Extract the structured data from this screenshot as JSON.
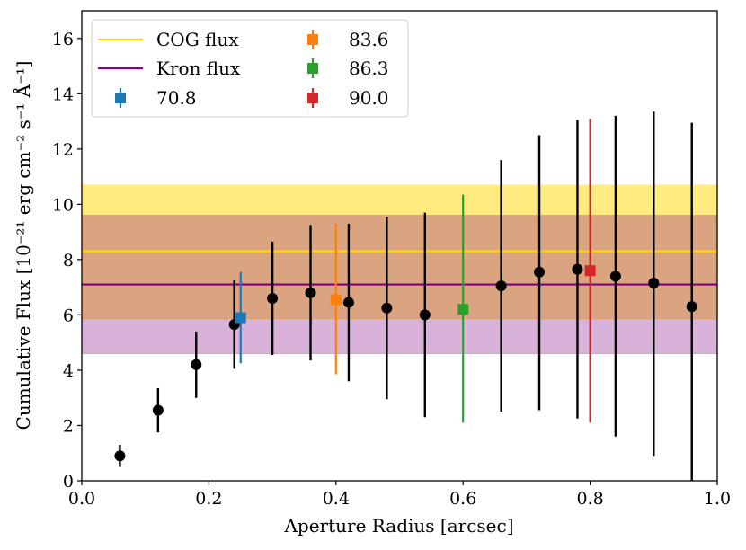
{
  "chart_data": {
    "type": "scatter",
    "title": "",
    "xlabel": "Aperture Radius [arcsec]",
    "ylabel": "Cumulative Flux [10⁻²¹ erg cm⁻² s⁻¹ Å⁻¹]",
    "xlim": [
      0.0,
      1.0
    ],
    "ylim": [
      0,
      17
    ],
    "xticks": [
      0.0,
      0.2,
      0.4,
      0.6,
      0.8,
      1.0
    ],
    "xtick_labels": [
      "0.0",
      "0.2",
      "0.4",
      "0.6",
      "0.8",
      "1.0"
    ],
    "yticks": [
      0,
      2,
      4,
      6,
      8,
      10,
      12,
      14,
      16
    ],
    "ytick_labels": [
      "0",
      "2",
      "4",
      "6",
      "8",
      "10",
      "12",
      "14",
      "16"
    ],
    "grid": false,
    "legend_placement": "top-left",
    "bands": [
      {
        "name": "COG flux",
        "value": 8.3,
        "low": 5.85,
        "high": 10.7,
        "color": "#ffd700"
      },
      {
        "name": "Kron flux",
        "value": 7.1,
        "low": 4.6,
        "high": 9.6,
        "color": "#800080"
      }
    ],
    "curve_points": {
      "color": "#000000",
      "x": [
        0.06,
        0.12,
        0.18,
        0.24,
        0.3,
        0.36,
        0.42,
        0.48,
        0.54,
        0.66,
        0.72,
        0.78,
        0.84,
        0.9,
        0.96
      ],
      "y": [
        0.9,
        2.55,
        4.2,
        5.65,
        6.6,
        6.8,
        6.45,
        6.25,
        6.0,
        7.05,
        7.55,
        7.65,
        7.4,
        7.15,
        6.3
      ],
      "err_low": [
        0.4,
        0.8,
        1.2,
        1.6,
        2.05,
        2.45,
        2.85,
        3.3,
        3.7,
        4.55,
        5.0,
        5.4,
        5.8,
        6.25,
        6.3
      ],
      "err_high": [
        0.4,
        0.8,
        1.2,
        1.6,
        2.05,
        2.45,
        2.85,
        3.3,
        3.7,
        4.55,
        4.95,
        5.4,
        5.8,
        6.2,
        6.65
      ]
    },
    "series": [
      {
        "name": "70.8",
        "x": 0.25,
        "y": 5.9,
        "err_low": 1.65,
        "err_high": 1.65,
        "color": "#1f77b4"
      },
      {
        "name": "83.6",
        "x": 0.4,
        "y": 6.55,
        "err_low": 2.7,
        "err_high": 2.75,
        "color": "#ff7f0e"
      },
      {
        "name": "86.3",
        "x": 0.6,
        "y": 6.2,
        "err_low": 4.1,
        "err_high": 4.15,
        "color": "#2ca02c"
      },
      {
        "name": "90.0",
        "x": 0.8,
        "y": 7.6,
        "err_low": 5.5,
        "err_high": 5.5,
        "color": "#d62728"
      }
    ],
    "legend_entries": [
      "COG flux",
      "Kron flux",
      "70.8",
      "83.6",
      "86.3",
      "90.0"
    ]
  }
}
